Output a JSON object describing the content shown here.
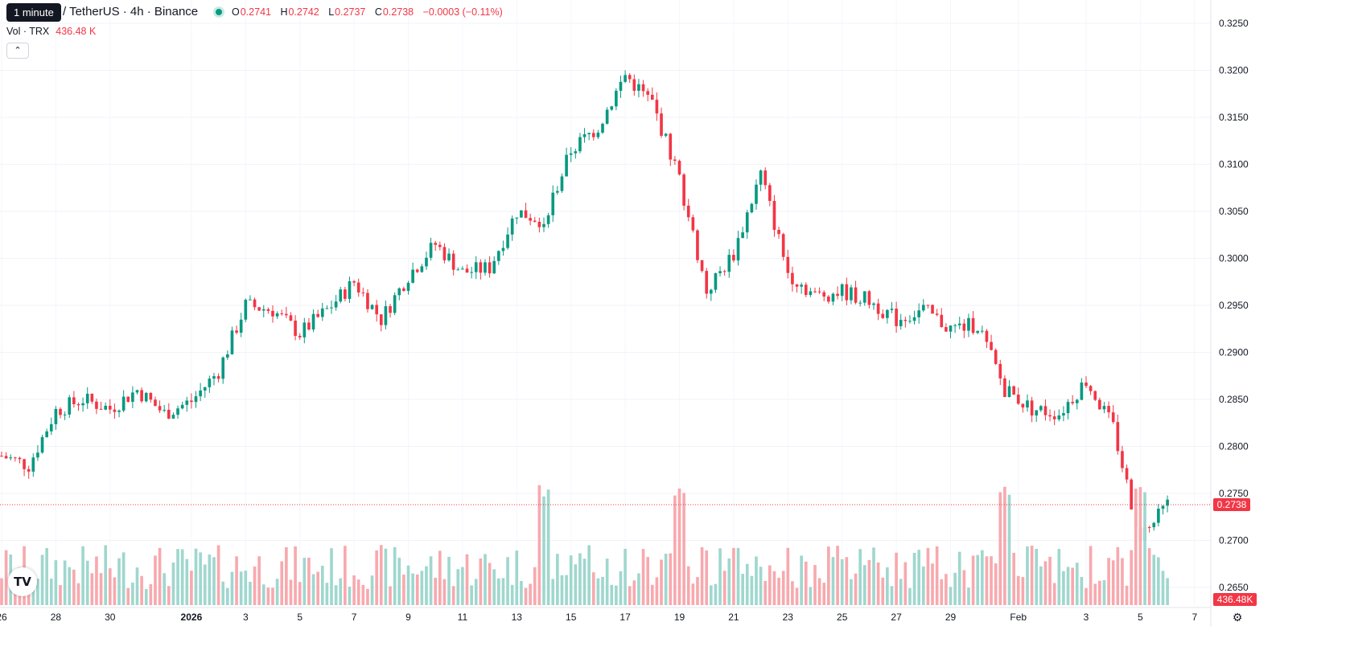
{
  "header": {
    "tooltip": "1 minute",
    "symbol_title": "/ TetherUS · 4h · Binance",
    "ohlc": {
      "o_label": "O",
      "o": "0.2741",
      "h_label": "H",
      "h": "0.2742",
      "l_label": "L",
      "l": "0.2737",
      "c_label": "C",
      "c": "0.2738",
      "change": "−0.0003 (−0.11%)"
    },
    "volume_label": "Vol · TRX",
    "volume_value": "436.48 K"
  },
  "icons": {
    "collapse": "chevron-up-icon",
    "logo": "tradingview-logo",
    "settings": "gear-icon"
  },
  "colors": {
    "up": "#089981",
    "down": "#f23645",
    "up_volume": "#9fd7ce",
    "down_volume": "#f7a9ae",
    "last_price_line": "#f23645"
  },
  "chart_data": {
    "type": "candlestick",
    "interval": "4h",
    "y_ticks": [
      "0.3250",
      "0.3200",
      "0.3150",
      "0.3100",
      "0.3050",
      "0.3000",
      "0.2950",
      "0.2900",
      "0.2850",
      "0.2800",
      "0.2750",
      "0.2700",
      "0.2650"
    ],
    "x_ticks": [
      "26",
      "28",
      "30",
      "2026",
      "3",
      "5",
      "7",
      "9",
      "11",
      "13",
      "15",
      "17",
      "19",
      "21",
      "23",
      "25",
      "27",
      "29",
      "Feb",
      "3",
      "5",
      "7"
    ],
    "last_price": "0.2738",
    "last_volume": "436.48K",
    "ylim": [
      0.2625,
      0.3265
    ],
    "anchors": [
      {
        "d": "Dec 26",
        "p": 0.279
      },
      {
        "d": "Dec 27",
        "p": 0.278
      },
      {
        "d": "Dec 28",
        "p": 0.2838
      },
      {
        "d": "Dec 29",
        "p": 0.285
      },
      {
        "d": "Dec 30",
        "p": 0.284
      },
      {
        "d": "Dec 31",
        "p": 0.286
      },
      {
        "d": "Jan 1",
        "p": 0.2835
      },
      {
        "d": "Jan 2",
        "p": 0.2848
      },
      {
        "d": "Jan 3",
        "p": 0.288
      },
      {
        "d": "Jan 4",
        "p": 0.295
      },
      {
        "d": "Jan 5",
        "p": 0.2945
      },
      {
        "d": "Jan 6",
        "p": 0.292
      },
      {
        "d": "Jan 7",
        "p": 0.2945
      },
      {
        "d": "Jan 8",
        "p": 0.2975
      },
      {
        "d": "Jan 9",
        "p": 0.2935
      },
      {
        "d": "Jan 10",
        "p": 0.2982
      },
      {
        "d": "Jan 11",
        "p": 0.3015
      },
      {
        "d": "Jan 12",
        "p": 0.2985
      },
      {
        "d": "Jan 13",
        "p": 0.299
      },
      {
        "d": "Jan 14",
        "p": 0.305
      },
      {
        "d": "Jan 15",
        "p": 0.304
      },
      {
        "d": "Jan 16",
        "p": 0.3115
      },
      {
        "d": "Jan 17",
        "p": 0.314
      },
      {
        "d": "Jan 18",
        "p": 0.3195
      },
      {
        "d": "Jan 19",
        "p": 0.3165
      },
      {
        "d": "Jan 20",
        "p": 0.3085
      },
      {
        "d": "Jan 21",
        "p": 0.2965
      },
      {
        "d": "Jan 22",
        "p": 0.3005
      },
      {
        "d": "Jan 23",
        "p": 0.309
      },
      {
        "d": "Jan 24",
        "p": 0.2985
      },
      {
        "d": "Jan 25",
        "p": 0.296
      },
      {
        "d": "Jan 26",
        "p": 0.2965
      },
      {
        "d": "Jan 27",
        "p": 0.2955
      },
      {
        "d": "Jan 28",
        "p": 0.2935
      },
      {
        "d": "Jan 29",
        "p": 0.2945
      },
      {
        "d": "Jan 30",
        "p": 0.2925
      },
      {
        "d": "Jan 31",
        "p": 0.293
      },
      {
        "d": "Feb 1",
        "p": 0.286
      },
      {
        "d": "Feb 2",
        "p": 0.284
      },
      {
        "d": "Feb 3",
        "p": 0.2835
      },
      {
        "d": "Feb 4",
        "p": 0.287
      },
      {
        "d": "Feb 5",
        "p": 0.282
      },
      {
        "d": "Feb 6",
        "p": 0.27
      },
      {
        "d": "Feb 7",
        "p": 0.2738
      }
    ],
    "volume_spikes": [
      "Jan 15",
      "Jan 20",
      "Feb 1",
      "Feb 6"
    ]
  }
}
